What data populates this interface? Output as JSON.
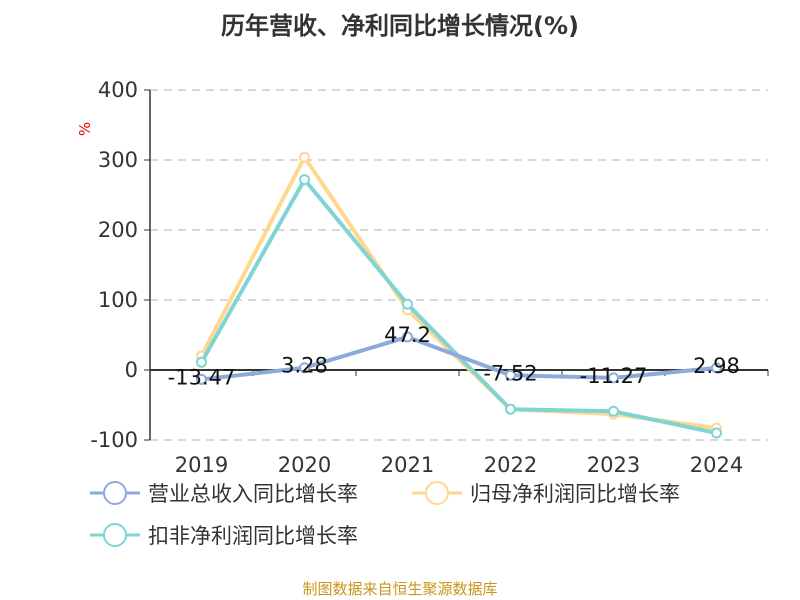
{
  "chart_data": {
    "type": "line",
    "title": "历年营收、净利同比增长情况(%)",
    "ylabel": "%",
    "categories": [
      "2019",
      "2020",
      "2021",
      "2022",
      "2023",
      "2024"
    ],
    "ylim": [
      -100,
      400
    ],
    "yticks": [
      -100,
      0,
      100,
      200,
      300,
      400
    ],
    "grid": true,
    "legend_position": "bottom",
    "series": [
      {
        "name": "营业总收入同比增长率",
        "color": "#8eaadb",
        "values": [
          -13.47,
          3.28,
          47.2,
          -7.52,
          -11.27,
          2.98
        ],
        "labels": [
          "-13.47",
          "3.28",
          "47.2",
          "-7.52",
          "-11.27",
          "2.98"
        ]
      },
      {
        "name": "归母净利润同比增长率",
        "color": "#ffd88f",
        "values": [
          20,
          304,
          86,
          -56,
          -63,
          -83
        ]
      },
      {
        "name": "扣非净利润同比增长率",
        "color": "#7fd4d4",
        "values": [
          11,
          272,
          94,
          -56,
          -59,
          -90
        ]
      }
    ]
  },
  "source": "制图数据来自恒生聚源数据库"
}
